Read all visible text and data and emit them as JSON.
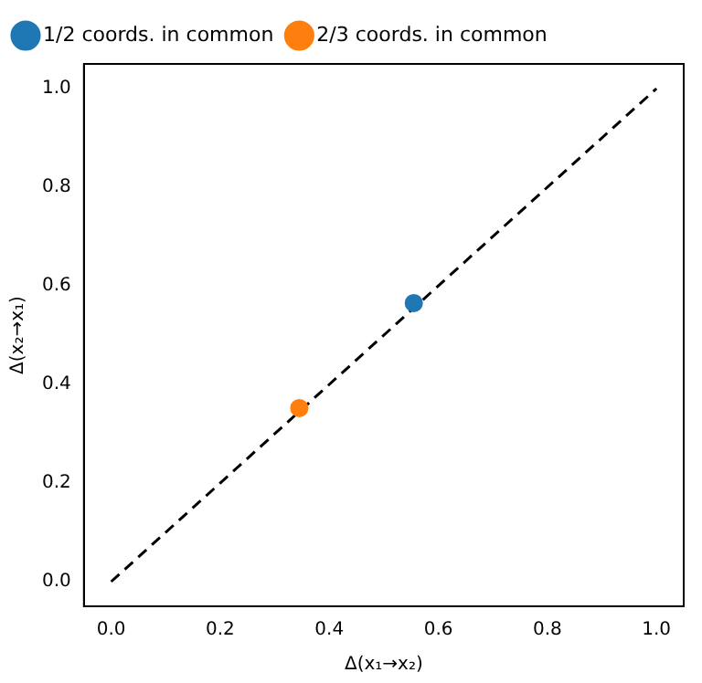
{
  "chart_data": {
    "type": "scatter",
    "xlabel": "Δ(x₁→x₂)",
    "ylabel": "Δ(x₂→x₁)",
    "xlim": [
      -0.05,
      1.05
    ],
    "ylim": [
      -0.05,
      1.05
    ],
    "xticks": [
      {
        "value": 0,
        "label": "0.0"
      },
      {
        "value": 0.2,
        "label": "0.2"
      },
      {
        "value": 0.4,
        "label": "0.4"
      },
      {
        "value": 0.6,
        "label": "0.6"
      },
      {
        "value": 0.8,
        "label": "0.8"
      },
      {
        "value": 1,
        "label": "1.0"
      }
    ],
    "yticks": [
      {
        "value": 0,
        "label": "0.0"
      },
      {
        "value": 0.2,
        "label": "0.2"
      },
      {
        "value": 0.4,
        "label": "0.4"
      },
      {
        "value": 0.6,
        "label": "0.6"
      },
      {
        "value": 0.8,
        "label": "0.8"
      },
      {
        "value": 1,
        "label": "1.0"
      }
    ],
    "grid": false,
    "legend": "top left",
    "marker": "circle",
    "series": [
      {
        "name": "1/2 coords. in common",
        "color": "#1f77b4",
        "x": [
          0.555
        ],
        "values": [
          0.565
        ]
      },
      {
        "name": "2/3 coords. in common",
        "color": "#ff7f0e",
        "x": [
          0.345
        ],
        "values": [
          0.352
        ]
      },
      {
        "type": "line",
        "color": "#000000",
        "line_style": "dashed",
        "marker": "none",
        "x": [
          0,
          1
        ],
        "values": [
          0,
          1
        ]
      }
    ]
  }
}
